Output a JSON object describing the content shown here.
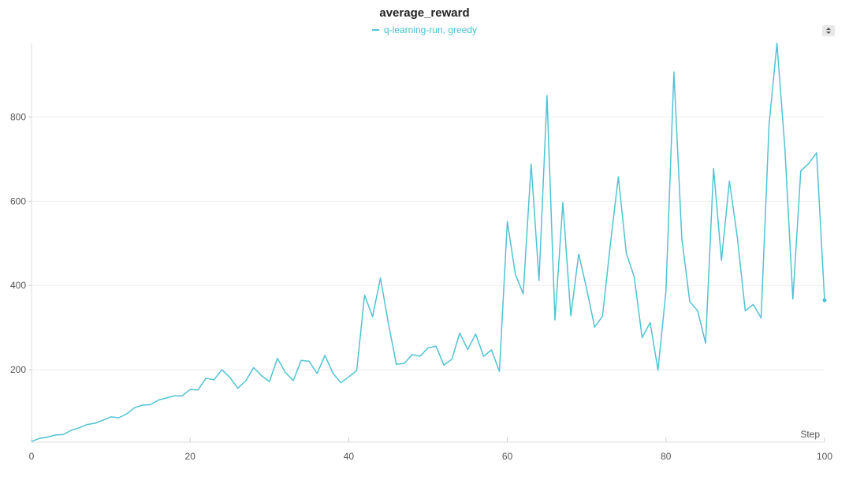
{
  "chart_data": {
    "type": "line",
    "title": "average_reward",
    "xlabel": "Step",
    "ylabel": "",
    "xlim": [
      0,
      100
    ],
    "ylim": [
      28,
      975
    ],
    "x_ticks": [
      0,
      20,
      40,
      60,
      80,
      100
    ],
    "y_ticks": [
      200,
      400,
      600,
      800
    ],
    "grid": "horizontal",
    "legend_position": "top-center",
    "series": [
      {
        "name": "q-learning-run, greedy",
        "color": "#4fc3d3",
        "x": [
          0,
          1,
          2,
          3,
          4,
          5,
          6,
          7,
          8,
          9,
          10,
          11,
          12,
          13,
          14,
          15,
          16,
          17,
          18,
          19,
          20,
          21,
          22,
          23,
          24,
          25,
          26,
          27,
          28,
          29,
          30,
          31,
          32,
          33,
          34,
          35,
          36,
          37,
          38,
          39,
          40,
          41,
          42,
          43,
          44,
          45,
          46,
          47,
          48,
          49,
          50,
          51,
          52,
          53,
          54,
          55,
          56,
          57,
          58,
          59,
          60,
          61,
          62,
          63,
          64,
          65,
          66,
          67,
          68,
          69,
          70,
          71,
          72,
          73,
          74,
          75,
          76,
          77,
          78,
          79,
          80,
          81,
          82,
          83,
          84,
          85,
          86,
          87,
          88,
          89,
          90,
          91,
          92,
          93,
          94,
          95,
          96,
          97,
          98,
          99,
          100
        ],
        "values": [
          30,
          37,
          40,
          45,
          46,
          56,
          62,
          70,
          73,
          80,
          88,
          86,
          95,
          110,
          116,
          117,
          128,
          133,
          138,
          138,
          153,
          152,
          180,
          176,
          200,
          182,
          156,
          173,
          205,
          186,
          172,
          227,
          194,
          174,
          222,
          220,
          191,
          234,
          192,
          169,
          183,
          198,
          377,
          326,
          418,
          310,
          213,
          215,
          236,
          232,
          252,
          256,
          211,
          225,
          287,
          248,
          285,
          232,
          247,
          196,
          552,
          427,
          380,
          688,
          412,
          851,
          318,
          597,
          328,
          475,
          392,
          301,
          327,
          500,
          658,
          477,
          420,
          276,
          312,
          199,
          387,
          907,
          512,
          362,
          340,
          263,
          678,
          460,
          648,
          515,
          340,
          355,
          323,
          782,
          975,
          725,
          368,
          672,
          690,
          715,
          365
        ]
      }
    ]
  },
  "ui": {
    "sort_icon": "sort-updown-icon"
  }
}
